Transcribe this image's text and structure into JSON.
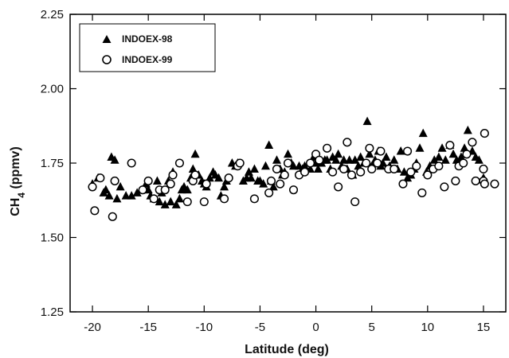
{
  "chart_data": {
    "type": "scatter",
    "title": "",
    "xlabel": "Latitude (deg)",
    "ylabel_main": "CH",
    "ylabel_sub": "4",
    "ylabel_unit": " (ppmv)",
    "xlim": [
      -22,
      17
    ],
    "ylim": [
      1.25,
      2.25
    ],
    "xticks": [
      -20,
      -15,
      -10,
      -5,
      0,
      5,
      10,
      15
    ],
    "xtick_labels": [
      "-20",
      "-15",
      "-10",
      "-5",
      "0",
      "5",
      "10",
      "15"
    ],
    "yticks": [
      1.25,
      1.5,
      1.75,
      2.0,
      2.25
    ],
    "ytick_labels": [
      "1.25",
      "1.50",
      "1.75",
      "2.00",
      "2.25"
    ],
    "grid": false,
    "legend_position": "top-left",
    "series": [
      {
        "name": "INDOEX-98",
        "marker": "filled-triangle",
        "color": "#000000",
        "points": [
          [
            -20,
            1.68
          ],
          [
            -19.5,
            1.7
          ],
          [
            -19,
            1.65
          ],
          [
            -18.8,
            1.66
          ],
          [
            -18.5,
            1.64
          ],
          [
            -18.3,
            1.77
          ],
          [
            -18,
            1.76
          ],
          [
            -17.8,
            1.63
          ],
          [
            -17.5,
            1.67
          ],
          [
            -17,
            1.64
          ],
          [
            -16.5,
            1.64
          ],
          [
            -16,
            1.65
          ],
          [
            -15.5,
            1.66
          ],
          [
            -15.2,
            1.68
          ],
          [
            -15,
            1.66
          ],
          [
            -14.8,
            1.64
          ],
          [
            -14.5,
            1.63
          ],
          [
            -14.2,
            1.69
          ],
          [
            -14,
            1.62
          ],
          [
            -13.8,
            1.65
          ],
          [
            -13.5,
            1.61
          ],
          [
            -13.2,
            1.69
          ],
          [
            -13,
            1.62
          ],
          [
            -12.8,
            1.72
          ],
          [
            -12.5,
            1.61
          ],
          [
            -12.2,
            1.63
          ],
          [
            -12,
            1.66
          ],
          [
            -11.8,
            1.67
          ],
          [
            -11.5,
            1.66
          ],
          [
            -11.2,
            1.7
          ],
          [
            -11,
            1.73
          ],
          [
            -10.8,
            1.78
          ],
          [
            -10.5,
            1.71
          ],
          [
            -10.2,
            1.69
          ],
          [
            -10,
            1.68
          ],
          [
            -9.8,
            1.67
          ],
          [
            -9.5,
            1.7
          ],
          [
            -9.2,
            1.72
          ],
          [
            -9,
            1.71
          ],
          [
            -8.7,
            1.7
          ],
          [
            -8.5,
            1.64
          ],
          [
            -8.2,
            1.67
          ],
          [
            -8,
            1.69
          ],
          [
            -7.5,
            1.75
          ],
          [
            -7.2,
            1.74
          ],
          [
            -7,
            1.75
          ],
          [
            -6.5,
            1.69
          ],
          [
            -6.2,
            1.7
          ],
          [
            -6,
            1.72
          ],
          [
            -5.8,
            1.7
          ],
          [
            -5.5,
            1.73
          ],
          [
            -5.2,
            1.69
          ],
          [
            -5,
            1.69
          ],
          [
            -4.7,
            1.68
          ],
          [
            -4.5,
            1.74
          ],
          [
            -4.2,
            1.81
          ],
          [
            -4,
            1.69
          ],
          [
            -3.8,
            1.67
          ],
          [
            -3.5,
            1.76
          ],
          [
            -3.2,
            1.73
          ],
          [
            -3,
            1.71
          ],
          [
            -2.8,
            1.72
          ],
          [
            -2.5,
            1.78
          ],
          [
            -2.2,
            1.75
          ],
          [
            -2,
            1.74
          ],
          [
            -1.5,
            1.74
          ],
          [
            -1.2,
            1.73
          ],
          [
            -1,
            1.74
          ],
          [
            -0.5,
            1.73
          ],
          [
            -0.2,
            1.77
          ],
          [
            0,
            1.75
          ],
          [
            0.2,
            1.73
          ],
          [
            0.5,
            1.75
          ],
          [
            0.8,
            1.76
          ],
          [
            1,
            1.76
          ],
          [
            1.3,
            1.73
          ],
          [
            1.5,
            1.77
          ],
          [
            1.8,
            1.76
          ],
          [
            2,
            1.78
          ],
          [
            2.3,
            1.74
          ],
          [
            2.5,
            1.76
          ],
          [
            2.8,
            1.73
          ],
          [
            3,
            1.76
          ],
          [
            3.3,
            1.71
          ],
          [
            3.5,
            1.76
          ],
          [
            3.8,
            1.74
          ],
          [
            4,
            1.77
          ],
          [
            4.3,
            1.75
          ],
          [
            4.6,
            1.89
          ],
          [
            4.8,
            1.78
          ],
          [
            5,
            1.74
          ],
          [
            5.3,
            1.76
          ],
          [
            5.6,
            1.79
          ],
          [
            5.8,
            1.74
          ],
          [
            6,
            1.75
          ],
          [
            6.3,
            1.77
          ],
          [
            6.6,
            1.74
          ],
          [
            7,
            1.76
          ],
          [
            7.3,
            1.73
          ],
          [
            7.6,
            1.79
          ],
          [
            7.9,
            1.72
          ],
          [
            8.2,
            1.7
          ],
          [
            8.5,
            1.71
          ],
          [
            8.8,
            1.73
          ],
          [
            9,
            1.75
          ],
          [
            9.3,
            1.8
          ],
          [
            9.6,
            1.85
          ],
          [
            9.9,
            1.72
          ],
          [
            10.2,
            1.74
          ],
          [
            10.6,
            1.76
          ],
          [
            11,
            1.77
          ],
          [
            11.3,
            1.8
          ],
          [
            11.6,
            1.76
          ],
          [
            12,
            1.81
          ],
          [
            12.3,
            1.78
          ],
          [
            12.6,
            1.76
          ],
          [
            13,
            1.77
          ],
          [
            13.3,
            1.8
          ],
          [
            13.6,
            1.86
          ],
          [
            14,
            1.79
          ],
          [
            14.3,
            1.77
          ],
          [
            14.6,
            1.76
          ],
          [
            15,
            1.7
          ]
        ]
      },
      {
        "name": "INDOEX-99",
        "marker": "open-circle",
        "color": "#000000",
        "points": [
          [
            -20,
            1.67
          ],
          [
            -19.8,
            1.59
          ],
          [
            -19.3,
            1.7
          ],
          [
            -18.2,
            1.57
          ],
          [
            -18,
            1.69
          ],
          [
            -16.5,
            1.75
          ],
          [
            -15.5,
            1.66
          ],
          [
            -15,
            1.69
          ],
          [
            -14.5,
            1.63
          ],
          [
            -14,
            1.66
          ],
          [
            -13.5,
            1.66
          ],
          [
            -13,
            1.68
          ],
          [
            -12.8,
            1.71
          ],
          [
            -12.2,
            1.75
          ],
          [
            -11.5,
            1.62
          ],
          [
            -11,
            1.69
          ],
          [
            -10.8,
            1.71
          ],
          [
            -10,
            1.62
          ],
          [
            -9.8,
            1.68
          ],
          [
            -8.2,
            1.63
          ],
          [
            -7.8,
            1.7
          ],
          [
            -7,
            1.74
          ],
          [
            -6.8,
            1.75
          ],
          [
            -5.5,
            1.63
          ],
          [
            -4.2,
            1.65
          ],
          [
            -4,
            1.69
          ],
          [
            -3.5,
            1.73
          ],
          [
            -3.2,
            1.68
          ],
          [
            -2.8,
            1.71
          ],
          [
            -2.5,
            1.75
          ],
          [
            -2,
            1.66
          ],
          [
            -1.5,
            1.71
          ],
          [
            -1,
            1.72
          ],
          [
            -0.5,
            1.75
          ],
          [
            0,
            1.78
          ],
          [
            0.3,
            1.76
          ],
          [
            1,
            1.8
          ],
          [
            1.5,
            1.72
          ],
          [
            2,
            1.67
          ],
          [
            2.5,
            1.73
          ],
          [
            2.8,
            1.82
          ],
          [
            3.2,
            1.71
          ],
          [
            3.5,
            1.62
          ],
          [
            4,
            1.72
          ],
          [
            4.5,
            1.75
          ],
          [
            4.8,
            1.8
          ],
          [
            5,
            1.73
          ],
          [
            5.5,
            1.75
          ],
          [
            5.8,
            1.79
          ],
          [
            6.5,
            1.73
          ],
          [
            7,
            1.73
          ],
          [
            7.8,
            1.68
          ],
          [
            8.2,
            1.79
          ],
          [
            8.5,
            1.72
          ],
          [
            9,
            1.74
          ],
          [
            9.5,
            1.65
          ],
          [
            10,
            1.71
          ],
          [
            10.5,
            1.73
          ],
          [
            11,
            1.74
          ],
          [
            11.5,
            1.67
          ],
          [
            12,
            1.81
          ],
          [
            12.5,
            1.69
          ],
          [
            12.8,
            1.74
          ],
          [
            13.2,
            1.75
          ],
          [
            13.5,
            1.78
          ],
          [
            14,
            1.82
          ],
          [
            14.3,
            1.69
          ],
          [
            15,
            1.73
          ],
          [
            15,
            1.69
          ],
          [
            15.1,
            1.85
          ],
          [
            15.1,
            1.68
          ],
          [
            16,
            1.68
          ]
        ]
      }
    ]
  }
}
